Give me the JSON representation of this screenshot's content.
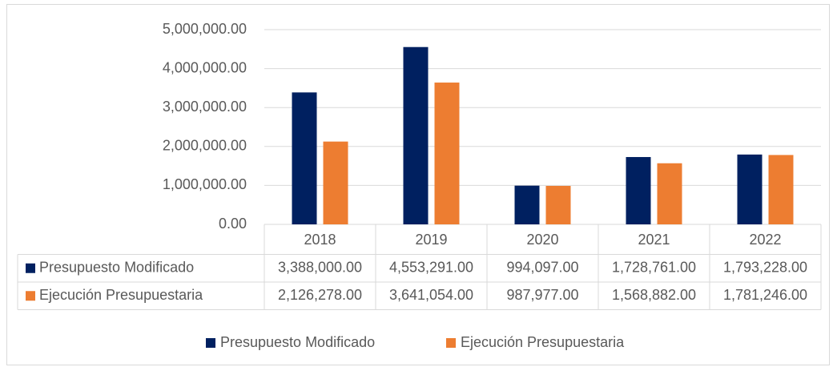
{
  "chart_data": {
    "type": "bar",
    "categories": [
      "2018",
      "2019",
      "2020",
      "2021",
      "2022"
    ],
    "series": [
      {
        "name": "Presupuesto Modificado",
        "color": "#002060",
        "values": [
          3388000,
          4553291,
          994097,
          1728761,
          1793228
        ],
        "value_labels": [
          "3,388,000.00",
          "4,553,291.00",
          "994,097.00",
          "1,728,761.00",
          "1,793,228.00"
        ]
      },
      {
        "name": "Ejecución Presupuestaria",
        "color": "#ED7D31",
        "values": [
          2126278,
          3641054,
          987977,
          1568882,
          1781246
        ],
        "value_labels": [
          "2,126,278.00",
          "3,641,054.00",
          "987,977.00",
          "1,568,882.00",
          "1,781,246.00"
        ]
      }
    ],
    "ylim": [
      0,
      5000000
    ],
    "yticks": [
      {
        "value": 0,
        "label": "0.00"
      },
      {
        "value": 1000000,
        "label": "1,000,000.00"
      },
      {
        "value": 2000000,
        "label": "2,000,000.00"
      },
      {
        "value": 3000000,
        "label": "3,000,000.00"
      },
      {
        "value": 4000000,
        "label": "4,000,000.00"
      },
      {
        "value": 5000000,
        "label": "5,000,000.00"
      }
    ],
    "grid": true,
    "legend": "bottom",
    "data_table": true
  }
}
